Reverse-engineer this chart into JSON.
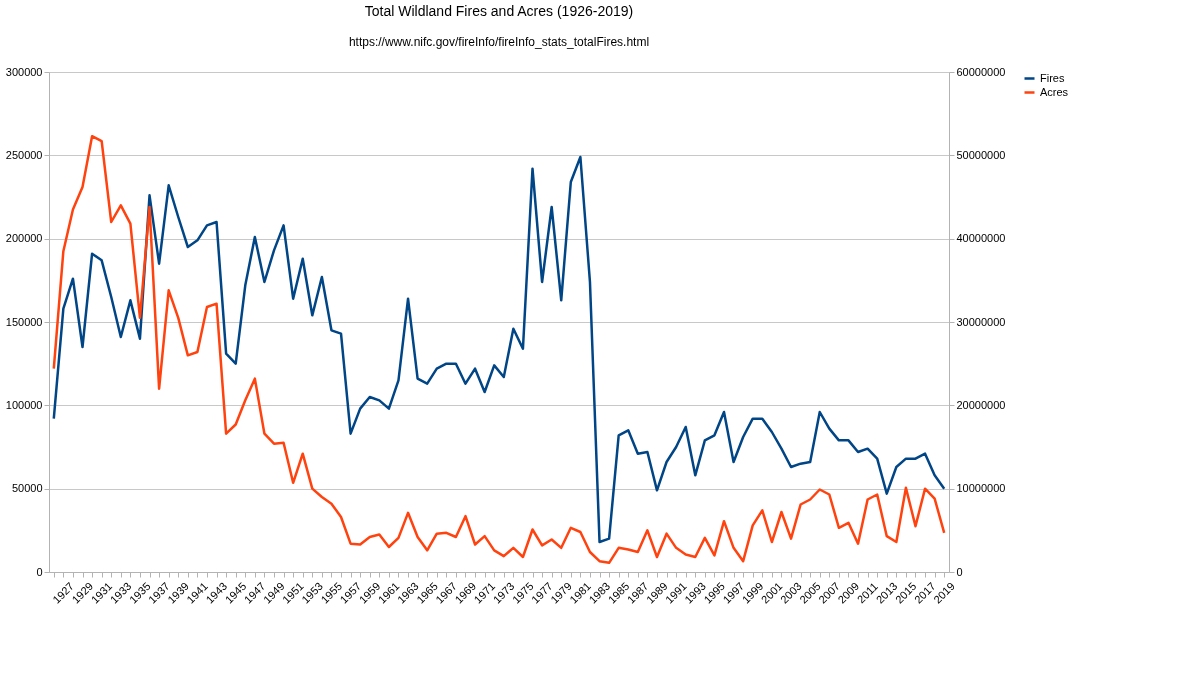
{
  "chart_data": {
    "type": "line",
    "title": "Total Wildland Fires and Acres (1926-2019)",
    "subtitle": "https://www.nifc.gov/fireInfo/fireInfo_stats_totalFires.html",
    "categories": [
      null,
      "1927",
      null,
      "1929",
      null,
      "1931",
      null,
      "1933",
      null,
      "1935",
      null,
      "1937",
      null,
      "1939",
      null,
      "1941",
      null,
      "1943",
      null,
      "1945",
      null,
      "1947",
      null,
      "1949",
      null,
      "1951",
      null,
      "1953",
      null,
      "1955",
      null,
      "1957",
      null,
      "1959",
      null,
      "1961",
      null,
      "1963",
      null,
      "1965",
      null,
      "1967",
      null,
      "1969",
      null,
      "1971",
      null,
      "1973",
      null,
      "1975",
      null,
      "1977",
      null,
      "1979",
      null,
      "1981",
      null,
      "1983",
      null,
      "1985",
      null,
      "1987",
      null,
      "1989",
      null,
      "1991",
      null,
      "1993",
      null,
      "1995",
      null,
      "1997",
      null,
      "1999",
      null,
      "2001",
      null,
      "2003",
      null,
      "2005",
      null,
      "2007",
      null,
      "2009",
      null,
      "2011",
      null,
      "2013",
      null,
      "2015",
      null,
      "2017",
      null,
      "2019"
    ],
    "series": [
      {
        "name": "Fires",
        "color": "#004586",
        "values": [
          92000,
          158000,
          176000,
          135000,
          191000,
          187000,
          165000,
          141000,
          163000,
          140000,
          226000,
          185000,
          232000,
          213000,
          195000,
          199000,
          208000,
          210000,
          131000,
          125000,
          172000,
          201000,
          174000,
          193000,
          208000,
          164000,
          188000,
          154000,
          177000,
          145000,
          143000,
          83000,
          98000,
          105000,
          103000,
          98000,
          115000,
          164000,
          116000,
          113000,
          122000,
          125000,
          125000,
          113000,
          122000,
          108000,
          124000,
          117000,
          146000,
          134000,
          242000,
          174000,
          219000,
          163000,
          234000,
          249000,
          174000,
          18000,
          20000,
          82000,
          85000,
          71000,
          72000,
          49000,
          66000,
          75000,
          87000,
          58000,
          79000,
          82000,
          96000,
          66000,
          81000,
          92000,
          92000,
          84000,
          74000,
          63000,
          65000,
          66000,
          96000,
          86000,
          79000,
          79000,
          72000,
          74000,
          68000,
          47000,
          63000,
          68000,
          68000,
          71000,
          58000,
          50000
        ]
      },
      {
        "name": "Acres",
        "color": "#ff420e",
        "axis": "y2",
        "values": [
          24400000,
          38500000,
          43500000,
          46200000,
          52300000,
          51700000,
          42000000,
          44000000,
          41800000,
          30500000,
          43800000,
          22000000,
          33800000,
          30500000,
          26000000,
          26400000,
          31800000,
          32200000,
          16600000,
          17700000,
          20600000,
          23200000,
          16600000,
          15400000,
          15500000,
          10700000,
          14200000,
          10000000,
          9000000,
          8200000,
          6600000,
          3400000,
          3300000,
          4200000,
          4500000,
          3000000,
          4100000,
          7100000,
          4200000,
          2600000,
          4600000,
          4700000,
          4200000,
          6700000,
          3300000,
          4300000,
          2600000,
          1900000,
          2900000,
          1800000,
          5100000,
          3200000,
          3900000,
          2900000,
          5300000,
          4800000,
          2400000,
          1300000,
          1100000,
          2900000,
          2700000,
          2400000,
          5000000,
          1800000,
          4600000,
          2900000,
          2100000,
          1800000,
          4100000,
          2000000,
          6100000,
          2900000,
          1300000,
          5600000,
          7400000,
          3600000,
          7200000,
          4000000,
          8100000,
          8700000,
          9900000,
          9300000,
          5300000,
          5900000,
          3400000,
          8700000,
          9300000,
          4300000,
          3600000,
          10100000,
          5500000,
          10000000,
          8800000,
          4700000
        ]
      }
    ],
    "ylim": [
      0,
      300000
    ],
    "yticks": [
      0,
      50000,
      100000,
      150000,
      200000,
      250000,
      300000
    ],
    "y2lim": [
      0,
      60000000
    ],
    "y2ticks": [
      0,
      10000000,
      20000000,
      30000000,
      40000000,
      50000000,
      60000000
    ],
    "grid": "y",
    "legend": "right",
    "line_style": "solid"
  }
}
